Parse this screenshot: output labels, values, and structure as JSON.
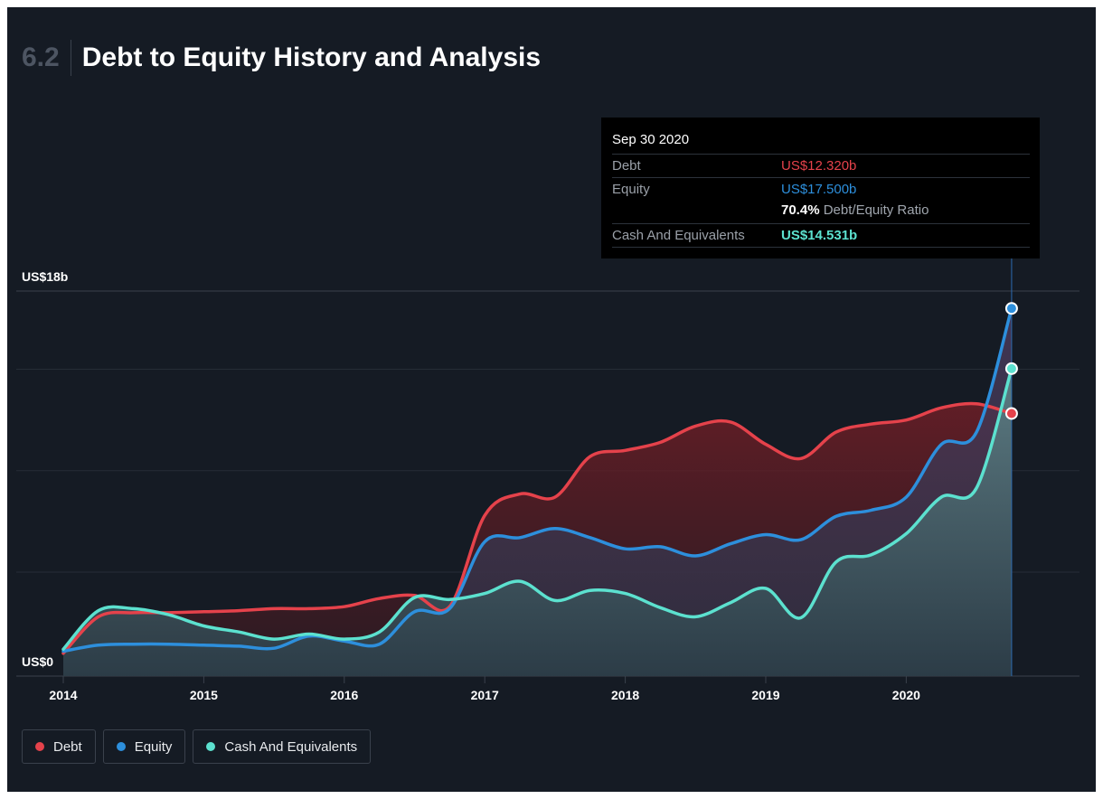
{
  "header": {
    "section_number": "6.2",
    "title": "Debt to Equity History and Analysis"
  },
  "tooltip": {
    "date": "Sep 30 2020",
    "debt_label": "Debt",
    "debt_value": "US$12.320b",
    "equity_label": "Equity",
    "equity_value": "US$17.500b",
    "ratio_value": "70.4%",
    "ratio_label": "Debt/Equity Ratio",
    "cash_label": "Cash And Equivalents",
    "cash_value": "US$14.531b"
  },
  "legend": {
    "debt": "Debt",
    "equity": "Equity",
    "cash": "Cash And Equivalents"
  },
  "colors": {
    "debt": "#e5424b",
    "equity": "#2d8fdc",
    "cash": "#5ce1cf",
    "background": "#151b24"
  },
  "chart_data": {
    "type": "area",
    "title": "Debt to Equity History and Analysis",
    "y_axis_labels": [
      "US$18b",
      "US$0"
    ],
    "ylim": [
      0,
      18
    ],
    "xlim": [
      2014,
      2020.95
    ],
    "x_ticks": [
      "2014",
      "2015",
      "2016",
      "2017",
      "2018",
      "2019",
      "2020"
    ],
    "x_tick_values": [
      2014,
      2015,
      2016,
      2017,
      2018,
      2019,
      2020
    ],
    "grid": "horizontal",
    "legend_position": "bottom-left",
    "x": [
      2014.0,
      2014.25,
      2014.5,
      2014.75,
      2015.0,
      2015.25,
      2015.5,
      2015.75,
      2016.0,
      2016.25,
      2016.5,
      2016.75,
      2017.0,
      2017.25,
      2017.5,
      2017.75,
      2018.0,
      2018.25,
      2018.5,
      2018.75,
      2019.0,
      2019.25,
      2019.5,
      2019.75,
      2020.0,
      2020.25,
      2020.5,
      2020.75
    ],
    "series": [
      {
        "name": "Debt",
        "values": [
          0.5,
          2.3,
          2.5,
          2.5,
          2.55,
          2.6,
          2.7,
          2.7,
          2.8,
          3.2,
          3.35,
          2.8,
          7.3,
          8.35,
          8.2,
          10.2,
          10.5,
          10.9,
          11.7,
          11.9,
          10.8,
          10.1,
          11.4,
          11.8,
          12.0,
          12.6,
          12.8,
          12.32
        ]
      },
      {
        "name": "Equity",
        "values": [
          0.6,
          0.9,
          0.95,
          0.95,
          0.9,
          0.85,
          0.75,
          1.35,
          1.1,
          0.95,
          2.55,
          2.7,
          6.0,
          6.2,
          6.65,
          6.2,
          5.65,
          5.75,
          5.3,
          5.9,
          6.35,
          6.1,
          7.25,
          7.55,
          8.2,
          10.8,
          11.4,
          17.5
        ]
      },
      {
        "name": "Cash And Equivalents",
        "values": [
          0.7,
          2.6,
          2.7,
          2.4,
          1.85,
          1.55,
          1.2,
          1.45,
          1.2,
          1.55,
          3.25,
          3.15,
          3.45,
          4.05,
          3.1,
          3.6,
          3.45,
          2.75,
          2.3,
          3.0,
          3.7,
          2.25,
          5.0,
          5.35,
          6.4,
          8.2,
          8.65,
          14.531
        ]
      }
    ]
  }
}
